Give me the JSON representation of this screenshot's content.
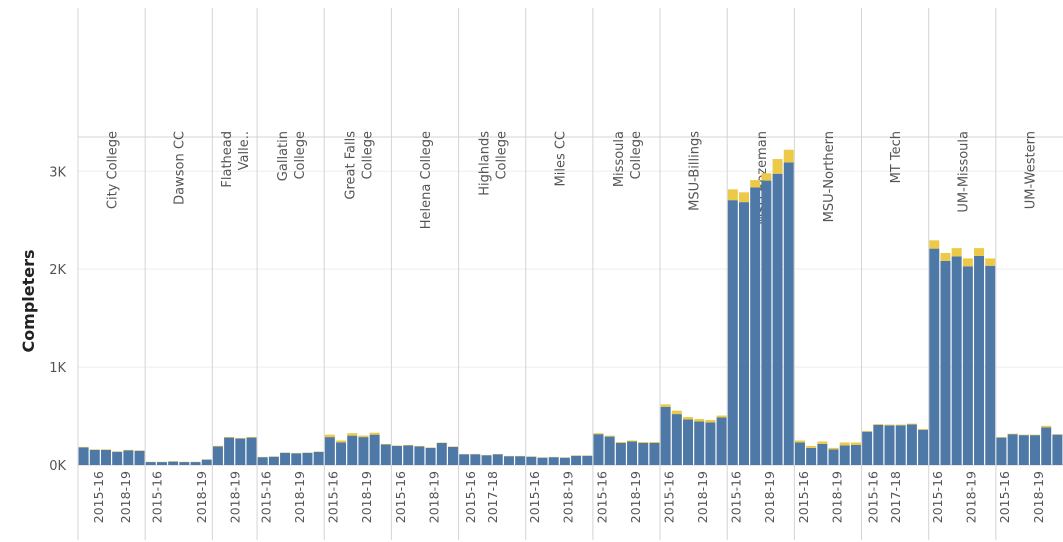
{
  "chart_data": {
    "type": "bar",
    "stacked": true,
    "ylabel": "Completers",
    "y_ticks": [
      "0K",
      "1K",
      "2K",
      "3K"
    ],
    "ylim": [
      0,
      3350
    ],
    "grid": "horizontal light gridlines",
    "series": [
      {
        "name": "",
        "color": "#4e79a7"
      },
      {
        "name": "",
        "color": "#edc948"
      }
    ],
    "panels": [
      {
        "name": "City College",
        "x_labels": [
          "",
          "2015-16",
          "",
          "2018-19",
          ""
        ],
        "base": [
          180,
          155,
          155,
          135,
          150,
          145
        ],
        "top": [
          5,
          5,
          5,
          5,
          5,
          5
        ]
      },
      {
        "name": "Dawson CC",
        "x_labels": [
          "2015-16",
          "",
          "2018-19"
        ],
        "base": [
          30,
          30,
          35,
          30,
          30,
          55
        ],
        "top": [
          3,
          3,
          3,
          3,
          3,
          3
        ]
      },
      {
        "name": "Flathead Valle..",
        "x_labels": [
          "2018-19"
        ],
        "base": [
          190,
          280,
          270,
          280
        ],
        "top": [
          6,
          6,
          6,
          6
        ]
      },
      {
        "name": "Gallatin College",
        "x_labels": [
          "2015-16",
          "",
          "2018-19",
          ""
        ],
        "base": [
          80,
          85,
          125,
          120,
          125,
          135
        ],
        "top": [
          3,
          3,
          3,
          3,
          3,
          3
        ]
      },
      {
        "name": "Great Falls College",
        "x_labels": [
          "2015-16",
          "",
          "2018-19",
          ""
        ],
        "base": [
          285,
          230,
          300,
          285,
          310,
          210
        ],
        "top": [
          25,
          20,
          25,
          15,
          20,
          5
        ]
      },
      {
        "name": "Helena College",
        "x_labels": [
          "2015-16",
          "",
          "2018-19",
          ""
        ],
        "base": [
          195,
          200,
          190,
          175,
          225,
          185
        ],
        "top": [
          5,
          5,
          5,
          5,
          5,
          5
        ]
      },
      {
        "name": "Highlands College",
        "x_labels": [
          "2015-16",
          "2017-18",
          ""
        ],
        "base": [
          110,
          110,
          100,
          110,
          90,
          90
        ],
        "top": [
          3,
          3,
          3,
          3,
          3,
          3
        ]
      },
      {
        "name": "Miles CC",
        "x_labels": [
          "2015-16",
          "",
          "2018-19",
          ""
        ],
        "base": [
          85,
          75,
          80,
          75,
          95,
          95
        ],
        "top": [
          3,
          3,
          3,
          3,
          3,
          3
        ]
      },
      {
        "name": "Missoula College",
        "x_labels": [
          "2015-16",
          "",
          "2018-19",
          ""
        ],
        "base": [
          315,
          290,
          225,
          240,
          225,
          225
        ],
        "top": [
          10,
          10,
          10,
          10,
          10,
          10
        ]
      },
      {
        "name": "MSU-Billings",
        "x_labels": [
          "2015-16",
          "",
          "2018-19",
          ""
        ],
        "base": [
          595,
          520,
          465,
          445,
          435,
          485
        ],
        "top": [
          25,
          35,
          25,
          25,
          25,
          20
        ]
      },
      {
        "name": "MSU-Bozeman",
        "x_labels": [
          "2015-16",
          "",
          "2018-19",
          ""
        ],
        "base": [
          2705,
          2685,
          2835,
          2905,
          2975,
          3090
        ],
        "top": [
          110,
          100,
          75,
          75,
          150,
          130
        ]
      },
      {
        "name": "MSU-Northern",
        "x_labels": [
          "2015-16",
          "",
          "2018-19",
          ""
        ],
        "base": [
          230,
          175,
          215,
          160,
          200,
          205
        ],
        "top": [
          20,
          20,
          25,
          15,
          30,
          25
        ]
      },
      {
        "name": "MT Tech",
        "x_labels": [
          "2015-16",
          "2017-18",
          ""
        ],
        "base": [
          340,
          410,
          405,
          405,
          415,
          360
        ],
        "top": [
          8,
          8,
          8,
          8,
          8,
          8
        ]
      },
      {
        "name": "UM-Missoula",
        "x_labels": [
          "2015-16",
          "",
          "2018-19",
          ""
        ],
        "base": [
          2210,
          2085,
          2130,
          2030,
          2135,
          2035
        ],
        "top": [
          85,
          80,
          85,
          80,
          80,
          75
        ]
      },
      {
        "name": "UM-Western",
        "x_labels": [
          "2015-16",
          "",
          "2018-19",
          ""
        ],
        "base": [
          280,
          315,
          305,
          305,
          385,
          310
        ],
        "top": [
          5,
          5,
          5,
          5,
          15,
          5
        ]
      }
    ]
  }
}
